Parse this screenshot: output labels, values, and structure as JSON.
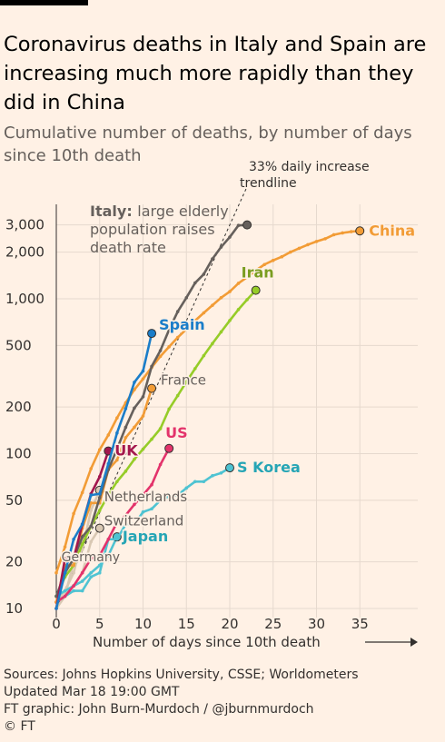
{
  "title": "Coronavirus deaths in Italy and Spain are increasing much more rapidly than they did in China",
  "subtitle": "Cumulative number of deaths, by number of days since 10th death",
  "footer": {
    "sources": "Sources: Johns Hopkins University, CSSE; Worldometers",
    "updated": "Updated Mar 18 19:00 GMT",
    "graphic": "FT graphic: John Burn-Murdoch / @jburnmurdoch",
    "copyright": "© FT"
  },
  "chart_data": {
    "type": "line",
    "title": "Coronavirus deaths in Italy and Spain are increasing much more rapidly than they did in China",
    "subtitle": "Cumulative number of deaths, by number of days since 10th death",
    "xlabel": "Number of days since 10th death",
    "xlim": [
      0,
      40
    ],
    "ylim": [
      10,
      4000
    ],
    "yscale": "log",
    "grid": true,
    "xticks": [
      0,
      5,
      10,
      15,
      20,
      25,
      30,
      35
    ],
    "xtick_labels": [
      "0",
      "5",
      "10",
      "15",
      "20",
      "25",
      "30",
      "35"
    ],
    "yticks": [
      10,
      20,
      50,
      100,
      200,
      500,
      1000,
      2000,
      3000
    ],
    "ytick_labels": [
      "10",
      "20",
      "50",
      "100",
      "200",
      "500",
      "1,000",
      "2,000",
      "3,000"
    ],
    "trendline": {
      "label": "33% daily increase trendline",
      "start": [
        0,
        10
      ],
      "daily_growth": 1.33
    },
    "series": [
      {
        "name": "China",
        "label": "China",
        "color": "#f29c36",
        "label_color": "#f29c36",
        "end_marker": true,
        "label_pos": "right",
        "x": [
          0,
          1,
          2,
          3,
          4,
          5,
          6,
          7,
          8,
          9,
          10,
          11,
          12,
          13,
          14,
          15,
          16,
          17,
          18,
          19,
          20,
          21,
          22,
          23,
          24,
          25,
          26,
          27,
          28,
          29,
          30,
          31,
          32,
          33,
          34,
          35
        ],
        "y": [
          17,
          25,
          41,
          56,
          80,
          106,
          132,
          170,
          213,
          259,
          304,
          361,
          425,
          490,
          563,
          637,
          722,
          811,
          908,
          1016,
          1113,
          1259,
          1380,
          1523,
          1665,
          1770,
          1868,
          2004,
          2118,
          2236,
          2345,
          2442,
          2592,
          2663,
          2715,
          2744
        ]
      },
      {
        "name": "Italy",
        "label": "Italy:",
        "label_extra": "large elderly population raises death rate",
        "color": "#66605c",
        "label_color": "#66605c",
        "end_marker": true,
        "label_pos": "top-left",
        "x": [
          0,
          1,
          2,
          3,
          4,
          5,
          6,
          7,
          8,
          9,
          10,
          11,
          12,
          13,
          14,
          15,
          16,
          17,
          18,
          19,
          20,
          21,
          22
        ],
        "y": [
          12,
          17,
          21,
          29,
          34,
          52,
          79,
          107,
          148,
          197,
          233,
          366,
          463,
          631,
          827,
          1016,
          1266,
          1441,
          1809,
          2158,
          2503,
          2978,
          3000
        ]
      },
      {
        "name": "Iran",
        "label": "Iran",
        "color": "#96cc28",
        "label_color": "#7a9d21",
        "end_marker": true,
        "label_pos": "above",
        "x": [
          0,
          1,
          2,
          3,
          4,
          5,
          6,
          7,
          8,
          9,
          10,
          11,
          12,
          13,
          14,
          15,
          16,
          17,
          18,
          19,
          20,
          21,
          22,
          23
        ],
        "y": [
          12,
          16,
          19,
          26,
          34,
          43,
          54,
          66,
          77,
          92,
          107,
          124,
          145,
          194,
          237,
          291,
          354,
          429,
          514,
          611,
          724,
          853,
          988,
          1135
        ]
      },
      {
        "name": "Spain",
        "label": "Spain",
        "color": "#1a7dc9",
        "label_color": "#1a7dc9",
        "end_marker": true,
        "label_pos": "right",
        "x": [
          0,
          1,
          2,
          3,
          4,
          5,
          6,
          7,
          8,
          9,
          10,
          11
        ],
        "y": [
          10,
          17,
          28,
          35,
          54,
          55,
          86,
          136,
          195,
          289,
          342,
          598
        ]
      },
      {
        "name": "France",
        "label": "France",
        "color": "#f29c36",
        "label_color": "#66605c",
        "end_marker": true,
        "label_pos": "right",
        "x": [
          0,
          1,
          2,
          3,
          4,
          5,
          6,
          7,
          8,
          9,
          10,
          11
        ],
        "y": [
          11,
          19,
          19,
          33,
          48,
          48,
          79,
          91,
          127,
          148,
          175,
          264
        ]
      },
      {
        "name": "US",
        "label": "US",
        "color": "#e3336b",
        "label_color": "#e3336b",
        "end_marker": true,
        "label_pos": "above",
        "x": [
          0,
          1,
          2,
          3,
          4,
          5,
          6,
          7,
          8,
          9,
          10,
          11,
          12,
          13
        ],
        "y": [
          11,
          12,
          14,
          17,
          21,
          22,
          28,
          36,
          40,
          47,
          54,
          63,
          85,
          108
        ]
      },
      {
        "name": "UK",
        "label": "UK",
        "color": "#a3174d",
        "label_color": "#a3174d",
        "end_marker": true,
        "label_pos": "right",
        "x": [
          0,
          1,
          2,
          3,
          4,
          5,
          6
        ],
        "y": [
          10,
          21,
          21,
          35,
          55,
          71,
          104
        ]
      },
      {
        "name": "S Korea",
        "label": "S Korea",
        "color": "#4ec3d2",
        "label_color": "#26a5b5",
        "end_marker": true,
        "label_pos": "right",
        "x": [
          0,
          1,
          2,
          3,
          4,
          5,
          6,
          7,
          8,
          9,
          10,
          11,
          12,
          13,
          14,
          15,
          16,
          17,
          18,
          19,
          20
        ],
        "y": [
          11,
          12,
          13,
          13,
          16,
          17,
          28,
          28,
          35,
          35,
          42,
          44,
          50,
          53,
          54,
          60,
          66,
          66,
          72,
          75,
          81
        ]
      },
      {
        "name": "Netherlands",
        "label": "Netherlands",
        "color": "#d9c8b3",
        "label_color": "#66605c",
        "end_marker": true,
        "label_pos": "right",
        "x": [
          0,
          1,
          2,
          3,
          4,
          5
        ],
        "y": [
          10,
          12,
          20,
          24,
          43,
          58
        ]
      },
      {
        "name": "Switzerland",
        "label": "Switzerland",
        "color": "#d9c8b3",
        "label_color": "#66605c",
        "end_marker": true,
        "label_pos": "right",
        "x": [
          0,
          1,
          2,
          3,
          4,
          5
        ],
        "y": [
          11,
          13,
          14,
          17,
          27,
          33
        ]
      },
      {
        "name": "Germany",
        "label": "Germany",
        "color": "#d9c8b3",
        "label_color": "#66605c",
        "end_marker": true,
        "label_pos": "below",
        "x": [
          0,
          1,
          2,
          3
        ],
        "y": [
          12,
          13,
          17,
          28
        ]
      },
      {
        "name": "Japan",
        "label": "Japan",
        "color": "#4ec3d2",
        "label_color": "#26a5b5",
        "end_marker": true,
        "label_pos": "right",
        "x": [
          0,
          1,
          2,
          3,
          4,
          5,
          6,
          7
        ],
        "y": [
          12,
          13,
          14,
          15,
          17,
          19,
          22,
          29
        ]
      }
    ]
  }
}
